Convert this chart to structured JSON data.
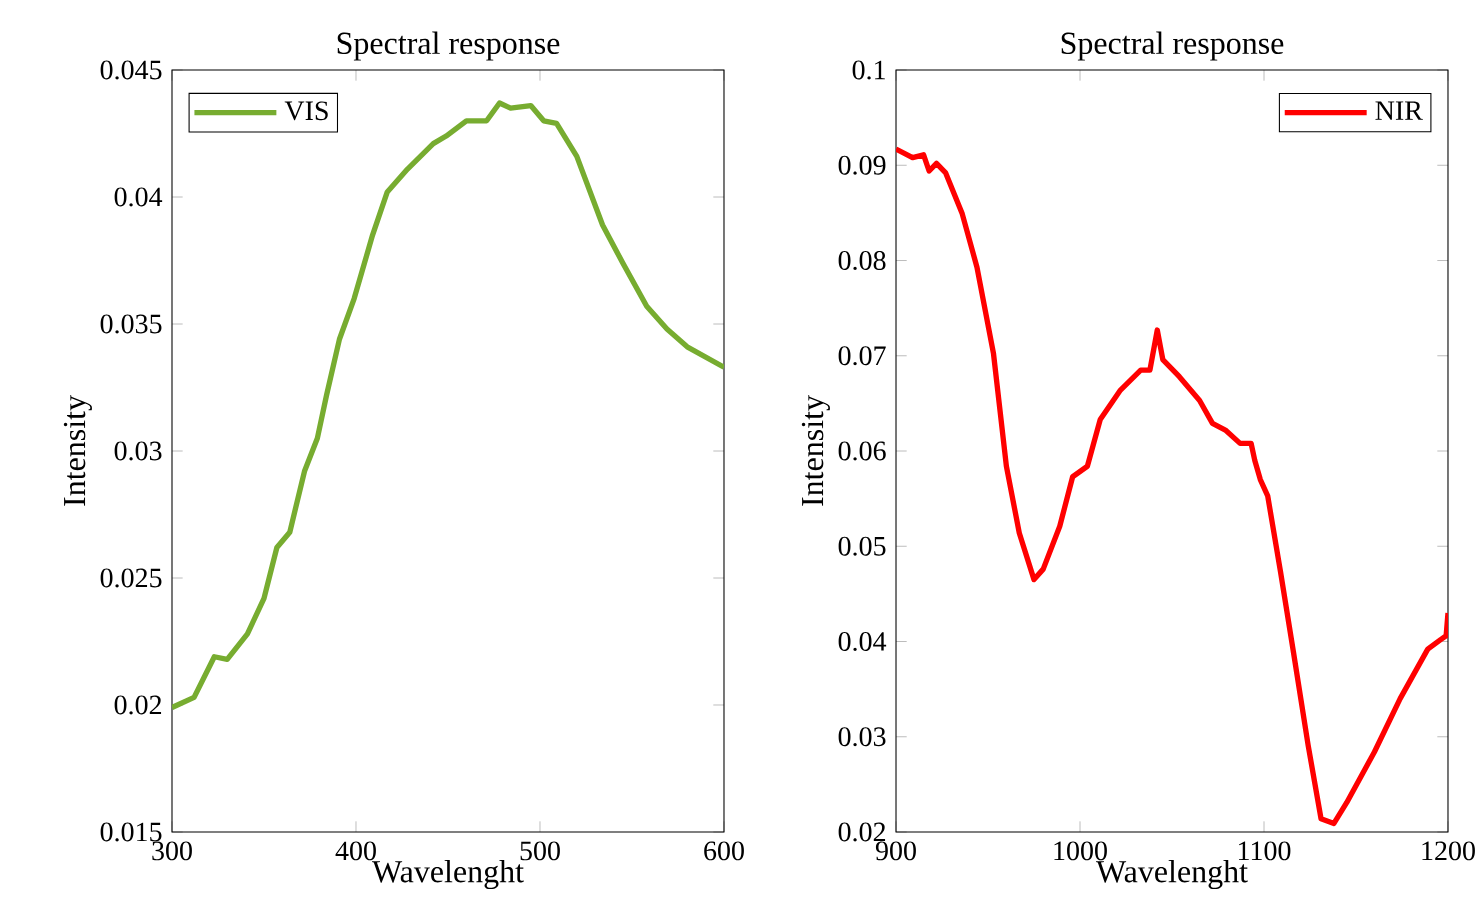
{
  "chart_data": [
    {
      "type": "line",
      "title": "Spectral response",
      "xlabel": "Wavelenght",
      "ylabel": "Intensity",
      "xlim": [
        300,
        600
      ],
      "ylim": [
        0.015,
        0.045
      ],
      "xticks": [
        300,
        400,
        500,
        600
      ],
      "yticks": [
        0.015,
        0.02,
        0.025,
        0.03,
        0.035,
        0.04,
        0.045
      ],
      "legend": "top left",
      "grid": false,
      "series": [
        {
          "name": "VIS",
          "color": "#77ac30",
          "x": [
            300,
            312,
            323,
            330,
            341,
            350,
            357,
            364,
            372,
            379,
            384,
            391,
            399,
            409,
            417,
            428,
            442,
            449,
            460,
            471,
            478,
            484,
            495,
            502,
            509,
            520,
            534,
            545,
            558,
            569,
            580,
            600
          ],
          "values": [
            0.0199,
            0.0203,
            0.0219,
            0.0218,
            0.0228,
            0.0242,
            0.0262,
            0.0268,
            0.0292,
            0.0305,
            0.0322,
            0.0344,
            0.036,
            0.0385,
            0.0402,
            0.0411,
            0.0421,
            0.0424,
            0.043,
            0.043,
            0.0437,
            0.0435,
            0.0436,
            0.043,
            0.0429,
            0.0416,
            0.0389,
            0.0374,
            0.0357,
            0.0348,
            0.0341,
            0.0333
          ]
        }
      ]
    },
    {
      "type": "line",
      "title": "Spectral response",
      "xlabel": "Wavelenght",
      "ylabel": "Intensity",
      "xlim": [
        900,
        1200
      ],
      "ylim": [
        0.02,
        0.1
      ],
      "xticks": [
        900,
        1000,
        1100,
        1200
      ],
      "yticks": [
        0.02,
        0.03,
        0.04,
        0.05,
        0.06,
        0.07,
        0.08,
        0.09,
        0.1
      ],
      "legend": "top right",
      "grid": false,
      "series": [
        {
          "name": "NIR",
          "color": "#ff0000",
          "x": [
            900,
            909,
            915,
            918,
            922,
            927,
            936,
            944,
            953,
            960,
            967,
            975,
            980,
            989,
            996,
            1004,
            1011,
            1022,
            1033,
            1038,
            1042,
            1045,
            1054,
            1065,
            1072,
            1079,
            1087,
            1093,
            1095,
            1098,
            1102,
            1109,
            1116,
            1124,
            1131,
            1138,
            1145,
            1160,
            1174,
            1189,
            1196,
            1199,
            1200
          ],
          "values": [
            0.0917,
            0.0908,
            0.0911,
            0.0894,
            0.0902,
            0.0892,
            0.0849,
            0.0793,
            0.0702,
            0.0584,
            0.0514,
            0.0465,
            0.0476,
            0.0521,
            0.0573,
            0.0584,
            0.0633,
            0.0664,
            0.0685,
            0.0685,
            0.0727,
            0.0696,
            0.0678,
            0.0653,
            0.0629,
            0.0622,
            0.0608,
            0.0608,
            0.059,
            0.057,
            0.0553,
            0.0473,
            0.0389,
            0.0291,
            0.0214,
            0.0209,
            0.0231,
            0.0284,
            0.034,
            0.0392,
            0.0402,
            0.0406,
            0.043
          ]
        }
      ]
    }
  ]
}
